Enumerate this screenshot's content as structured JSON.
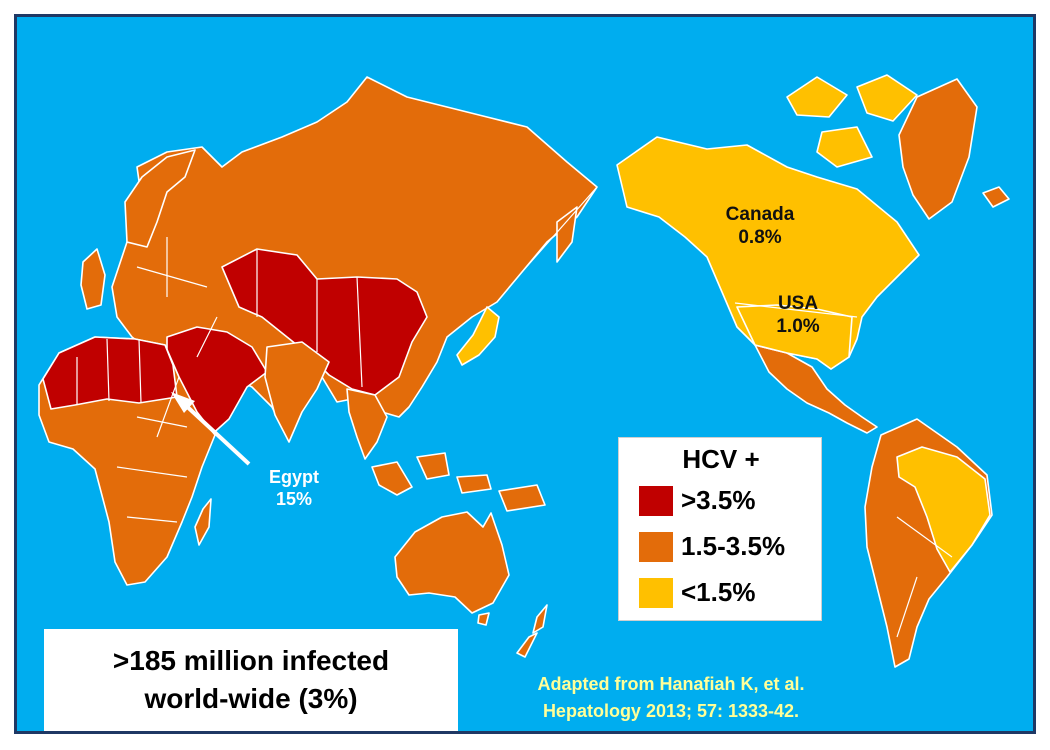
{
  "colors": {
    "ocean": "#00adef",
    "high": "#c00000",
    "mid": "#e36c0a",
    "low": "#ffc000",
    "frame": "#1f3864",
    "citation_text": "#ffff99"
  },
  "map": {
    "annotations": {
      "canada": {
        "name": "Canada",
        "value": "0.8%"
      },
      "usa": {
        "name": "USA",
        "value": "1.0%"
      },
      "egypt": {
        "name": "Egypt",
        "value": "15%"
      }
    }
  },
  "legend": {
    "title": "HCV +",
    "items": [
      {
        "label": ">3.5%",
        "color": "#c00000"
      },
      {
        "label": "1.5-3.5%",
        "color": "#e36c0a"
      },
      {
        "label": "<1.5%",
        "color": "#ffc000"
      }
    ]
  },
  "stat_box": {
    "line1": ">185 million infected",
    "line2": "world-wide (3%)"
  },
  "citation": {
    "line1": "Adapted from Hanafiah K, et al.",
    "line2": "Hepatology 2013; 57: 1333-42."
  }
}
